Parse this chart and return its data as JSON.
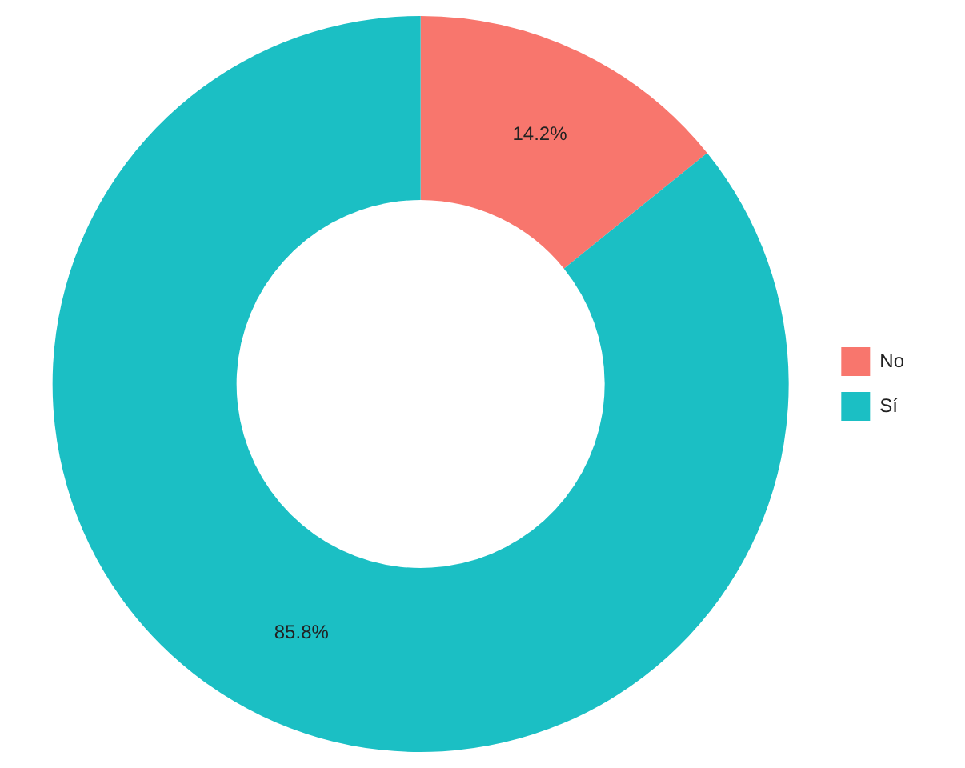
{
  "chart_data": {
    "type": "donut",
    "categories": [
      "No",
      "Sí"
    ],
    "values": [
      14.2,
      85.8
    ],
    "colors": [
      "#f8766d",
      "#1bbfc4"
    ],
    "value_labels": [
      "14.2%",
      "85.8%"
    ],
    "legend": "right"
  }
}
